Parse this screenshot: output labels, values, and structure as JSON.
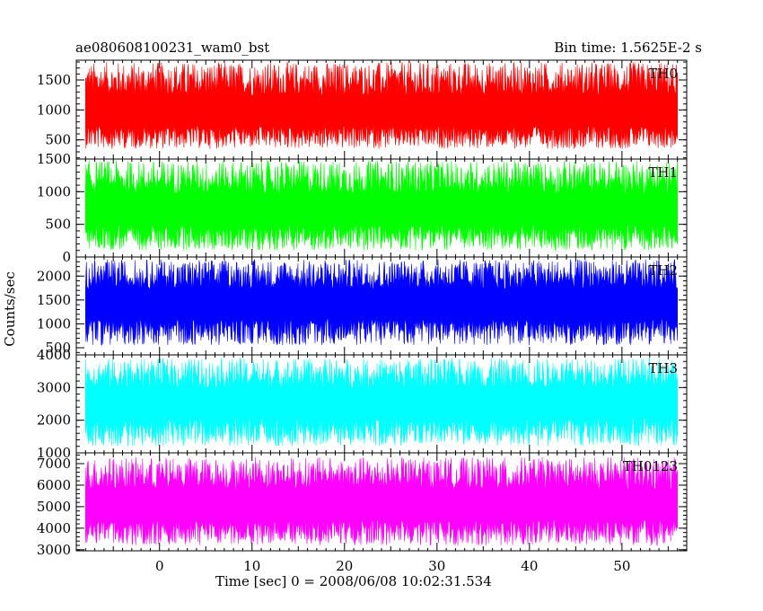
{
  "header": {
    "left": "ae080608100231_wam0_bst",
    "right": "Bin time: 1.5625E-2 s"
  },
  "chart_data": {
    "type": "line",
    "xlabel": "Time [sec] 0 = 2008/06/08 10:02:31.534",
    "ylabel": "Counts/sec",
    "xlim": [
      -9,
      57
    ],
    "x_start": -8,
    "x_end": 56,
    "xticks": [
      0,
      10,
      20,
      30,
      40,
      50
    ],
    "panels": [
      {
        "name": "TH0",
        "color": "#ff0000",
        "ylim": [
          180,
          1830
        ],
        "yticks": [
          500,
          1000,
          1500
        ],
        "mean": 940,
        "low": 350,
        "high": 1800
      },
      {
        "name": "TH1",
        "color": "#00ff00",
        "ylim": [
          0,
          1500
        ],
        "yticks": [
          0,
          500,
          1000,
          1500
        ],
        "mean": 700,
        "low": 100,
        "high": 1480
      },
      {
        "name": "TH2",
        "color": "#0000ff",
        "ylim": [
          350,
          2400
        ],
        "yticks": [
          500,
          1000,
          1500,
          2000
        ],
        "mean": 1400,
        "low": 550,
        "high": 2350
      },
      {
        "name": "TH3",
        "color": "#00ffff",
        "ylim": [
          1000,
          4000
        ],
        "yticks": [
          1000,
          2000,
          3000,
          4000
        ],
        "mean": 2500,
        "low": 1200,
        "high": 3900
      },
      {
        "name": "TH0123",
        "color": "#ff00ff",
        "ylim": [
          2950,
          7500
        ],
        "yticks": [
          3000,
          4000,
          5000,
          6000,
          7000
        ],
        "mean": 5000,
        "low": 3200,
        "high": 7300
      }
    ]
  }
}
